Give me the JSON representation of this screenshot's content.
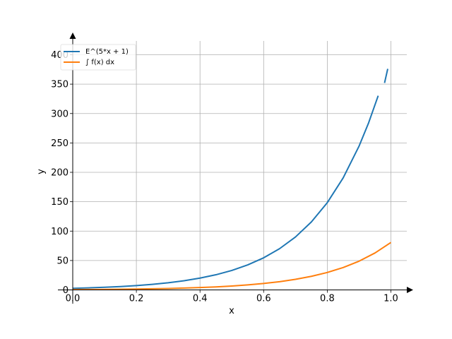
{
  "chart_data": {
    "type": "line",
    "title": "",
    "xlabel": "x",
    "ylabel": "y",
    "xlim": [
      0,
      1.05
    ],
    "ylim": [
      0,
      420
    ],
    "grid": true,
    "legend_position": "top-left",
    "xticks": [
      0.0,
      0.2,
      0.4,
      0.6,
      0.8,
      1.0
    ],
    "xtick_labels": [
      "0.0",
      "0.2",
      "0.4",
      "0.6",
      "0.8",
      "1.0"
    ],
    "yticks": [
      0,
      50,
      100,
      150,
      200,
      250,
      300,
      350,
      400
    ],
    "ytick_labels": [
      "0",
      "50",
      "100",
      "150",
      "200",
      "250",
      "300",
      "350",
      "400"
    ],
    "series": [
      {
        "name": "E^(5*x + 1)",
        "color": "#1f77b4",
        "x": [
          0.0,
          0.05,
          0.1,
          0.15,
          0.2,
          0.25,
          0.3,
          0.35,
          0.4,
          0.45,
          0.5,
          0.55,
          0.6,
          0.65,
          0.7,
          0.75,
          0.8,
          0.85,
          0.9,
          0.93,
          0.96,
          0.98,
          0.99
        ],
        "values": [
          2.72,
          3.49,
          4.48,
          5.75,
          7.39,
          9.49,
          12.18,
          15.64,
          20.09,
          25.79,
          33.12,
          42.52,
          54.6,
          70.11,
          90.02,
          115.58,
          148.41,
          190.57,
          244.69,
          284.29,
          330.3,
          352.0,
          376.0
        ]
      },
      {
        "name": "∫ f(x) dx",
        "color": "#ff7f0e",
        "x": [
          0.0,
          0.05,
          0.1,
          0.15,
          0.2,
          0.25,
          0.3,
          0.35,
          0.4,
          0.45,
          0.5,
          0.55,
          0.6,
          0.65,
          0.7,
          0.75,
          0.8,
          0.85,
          0.9,
          0.95,
          1.0
        ],
        "values": [
          0.54,
          0.7,
          0.9,
          1.15,
          1.48,
          1.9,
          2.44,
          3.13,
          4.02,
          5.16,
          6.62,
          8.5,
          10.92,
          14.02,
          18.0,
          23.12,
          29.68,
          38.11,
          48.94,
          62.84,
          80.69
        ]
      }
    ]
  }
}
